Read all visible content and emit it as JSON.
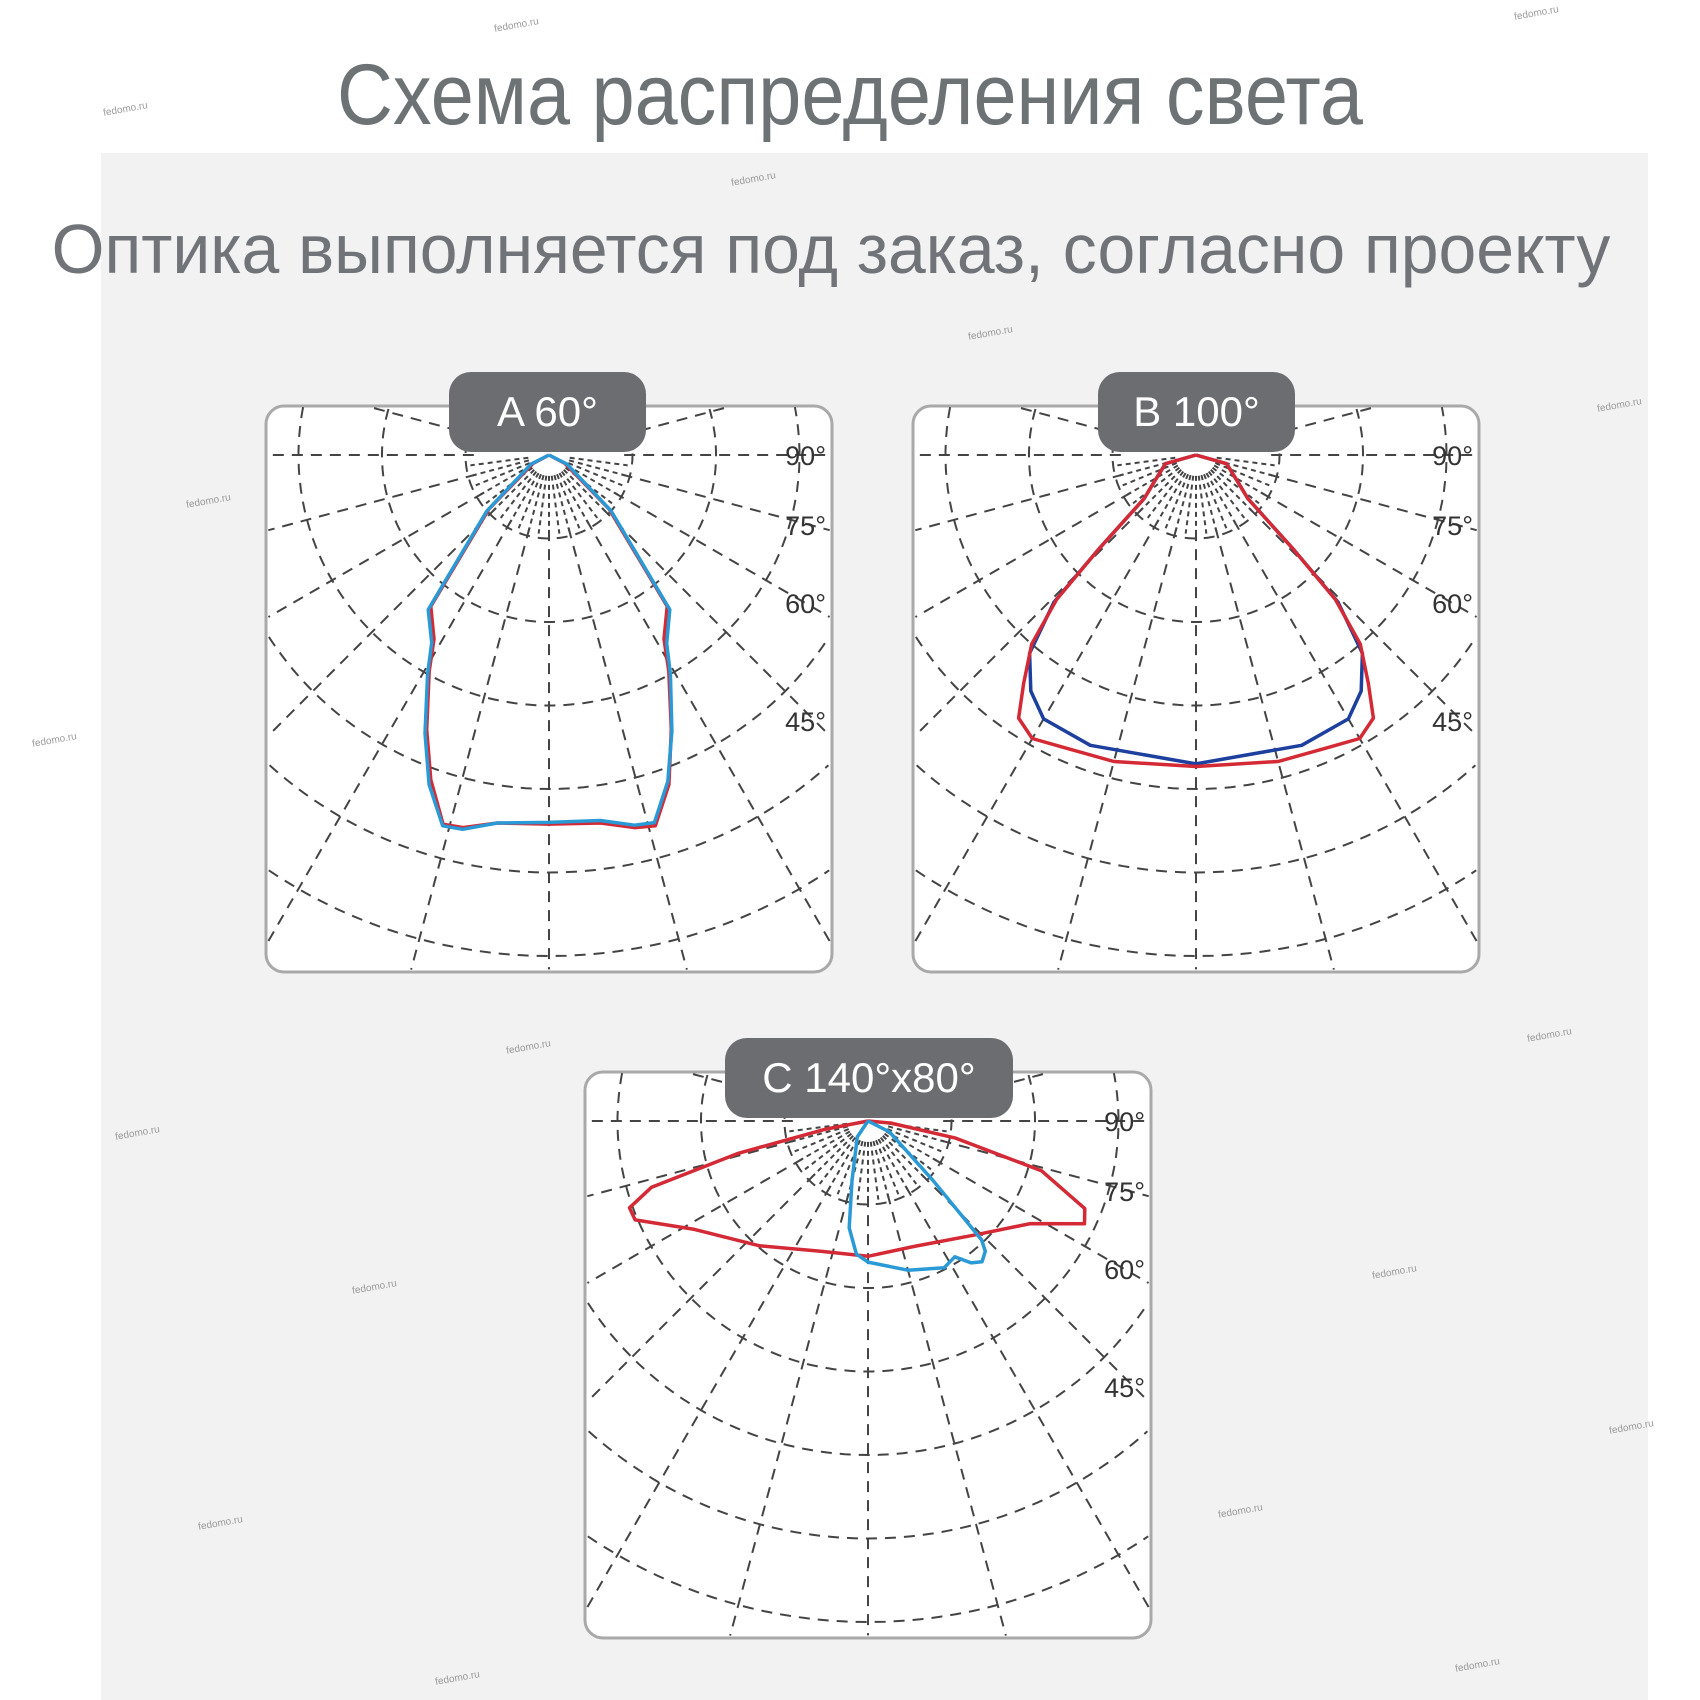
{
  "title": "Схема распределения света",
  "subtitle": "Оптика выполняется под заказ, согласно проекту",
  "watermark": "fedomo.ru",
  "colors": {
    "red": "#d42a36",
    "blue": "#2a9ad6",
    "dark_blue": "#1d3f9e",
    "label_bg": "#6b6d70",
    "text_gray": "#6d7275",
    "panel_bg": "#f2f2f2"
  },
  "chart_data": [
    {
      "type": "polar",
      "label": "A 60°",
      "angle_labels": [
        "90°",
        "75°",
        "60°",
        "45°"
      ],
      "angle_unit": "degrees from nadir",
      "grid": true,
      "series": [
        {
          "color": "#d42a36",
          "points": [
            [
              -70,
              0
            ],
            [
              -62,
              0.22
            ],
            [
              -48,
              0.97
            ],
            [
              -38,
              2.3
            ],
            [
              -32,
              2.6
            ],
            [
              -29,
              2.96
            ],
            [
              -24,
              3.6
            ],
            [
              -20,
              4.14
            ],
            [
              -16,
              4.6
            ],
            [
              -13,
              4.58
            ],
            [
              -8,
              4.45
            ],
            [
              0,
              4.42
            ],
            [
              8,
              4.45
            ],
            [
              13,
              4.58
            ],
            [
              16,
              4.62
            ],
            [
              20,
              4.2
            ],
            [
              24,
              3.6
            ],
            [
              29,
              2.96
            ],
            [
              32,
              2.6
            ],
            [
              38,
              2.3
            ],
            [
              48,
              0.97
            ],
            [
              62,
              0.22
            ],
            [
              70,
              0
            ]
          ]
        },
        {
          "color": "#2a9ad6",
          "points": [
            [
              -72,
              0
            ],
            [
              -63,
              0.24
            ],
            [
              -48,
              1.0
            ],
            [
              -38,
              2.35
            ],
            [
              -32,
              2.65
            ],
            [
              -29,
              3.0
            ],
            [
              -24,
              3.65
            ],
            [
              -20,
              4.2
            ],
            [
              -16,
              4.62
            ],
            [
              -13,
              4.6
            ],
            [
              -8,
              4.45
            ],
            [
              0,
              4.4
            ],
            [
              8,
              4.42
            ],
            [
              13,
              4.55
            ],
            [
              16,
              4.58
            ],
            [
              20,
              4.16
            ],
            [
              24,
              3.62
            ],
            [
              29,
              3.0
            ],
            [
              32,
              2.66
            ],
            [
              38,
              2.35
            ],
            [
              48,
              1.0
            ],
            [
              63,
              0.24
            ],
            [
              72,
              0
            ]
          ]
        }
      ]
    },
    {
      "type": "polar",
      "label": "B 100°",
      "angle_labels": [
        "90°",
        "75°",
        "60°",
        "45°"
      ],
      "grid": true,
      "series": [
        {
          "color": "#1d3f9e",
          "points": [
            [
              -90,
              0
            ],
            [
              -74,
              0.38
            ],
            [
              -58,
              0.58
            ],
            [
              -50,
              0.81
            ],
            [
              -46,
              1.6
            ],
            [
              -44,
              2.45
            ],
            [
              -40,
              3.1
            ],
            [
              -35,
              3.45
            ],
            [
              -30,
              3.65
            ],
            [
              -20,
              3.7
            ],
            [
              0,
              3.7
            ],
            [
              20,
              3.7
            ],
            [
              30,
              3.65
            ],
            [
              35,
              3.45
            ],
            [
              40,
              3.1
            ],
            [
              44,
              2.45
            ],
            [
              46,
              1.6
            ],
            [
              50,
              0.81
            ],
            [
              58,
              0.58
            ],
            [
              74,
              0.38
            ],
            [
              90,
              0
            ]
          ]
        },
        {
          "color": "#d42a36",
          "points": [
            [
              -90,
              0
            ],
            [
              -74,
              0.38
            ],
            [
              -58,
              0.58
            ],
            [
              -50,
              0.81
            ],
            [
              -46,
              1.6
            ],
            [
              -44,
              2.4
            ],
            [
              -41,
              3.0
            ],
            [
              -37,
              3.43
            ],
            [
              -34,
              3.8
            ],
            [
              -30,
              3.92
            ],
            [
              -25,
              3.85
            ],
            [
              -15,
              3.8
            ],
            [
              0,
              3.73
            ],
            [
              15,
              3.8
            ],
            [
              25,
              3.85
            ],
            [
              30,
              3.92
            ],
            [
              34,
              3.8
            ],
            [
              37,
              3.43
            ],
            [
              41,
              3.0
            ],
            [
              44,
              2.4
            ],
            [
              46,
              1.6
            ],
            [
              50,
              0.81
            ],
            [
              58,
              0.58
            ],
            [
              74,
              0.38
            ],
            [
              90,
              0
            ]
          ]
        }
      ]
    },
    {
      "type": "polar",
      "label": "C 140°x80°",
      "angle_labels": [
        "90°",
        "75°",
        "60°",
        "45°"
      ],
      "grid": true,
      "series": [
        {
          "color": "#d42a36",
          "points": [
            [
              -86,
              0
            ],
            [
              -79,
              0.53
            ],
            [
              -76,
              1.6
            ],
            [
              -73,
              2.71
            ],
            [
              -70,
              3.04
            ],
            [
              -67,
              3.03
            ],
            [
              -58,
              2.45
            ],
            [
              -41,
              1.98
            ],
            [
              -20,
              1.66
            ],
            [
              0,
              1.62
            ],
            [
              20,
              1.6
            ],
            [
              43.6,
              1.88
            ],
            [
              57.7,
              2.3
            ],
            [
              64.6,
              2.87
            ],
            [
              68,
              2.8
            ],
            [
              74,
              2.16
            ],
            [
              79,
              1.06
            ],
            [
              85,
              0.27
            ],
            [
              88,
              0
            ]
          ]
        },
        {
          "color": "#2a9ad6",
          "points": [
            [
              -45,
              0
            ],
            [
              -34,
              0.23
            ],
            [
              -15,
              0.74
            ],
            [
              -10,
              1.3
            ],
            [
              -5,
              1.6
            ],
            [
              0,
              1.69
            ],
            [
              15,
              1.85
            ],
            [
              27.4,
              1.98
            ],
            [
              32.6,
              1.93
            ],
            [
              36,
              2.1
            ],
            [
              39,
              2.17
            ],
            [
              42,
              2.1
            ],
            [
              43.7,
              1.97
            ],
            [
              47.5,
              1.06
            ],
            [
              63,
              0.29
            ],
            [
              70,
              0
            ]
          ]
        }
      ]
    }
  ]
}
